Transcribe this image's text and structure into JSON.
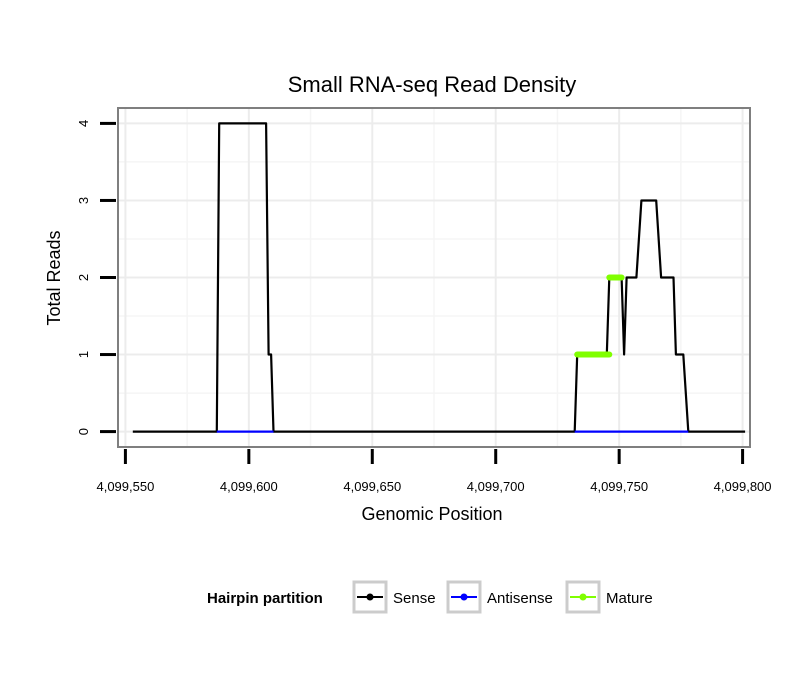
{
  "chart_data": {
    "type": "line",
    "title": "Small RNA-seq Read Density",
    "xlabel": "Genomic Position",
    "ylabel": "Total Reads",
    "xlim": [
      4099547,
      4099803
    ],
    "ylim": [
      -0.2,
      4.2
    ],
    "x_ticks": [
      4099550,
      4099600,
      4099650,
      4099700,
      4099750,
      4099800
    ],
    "x_tick_labels": [
      "4,099,550",
      "4,099,600",
      "4,099,650",
      "4,099,700",
      "4,099,750",
      "4,099,800"
    ],
    "y_ticks": [
      0,
      1,
      2,
      3,
      4
    ],
    "y_tick_labels": [
      "0",
      "1",
      "2",
      "3",
      "4"
    ],
    "grid": true,
    "legend": {
      "title": "Hairpin partition",
      "position": "bottom",
      "entries": [
        {
          "label": "Sense",
          "color": "#000000"
        },
        {
          "label": "Antisense",
          "color": "#0000ff"
        },
        {
          "label": "Mature",
          "color": "#80ff00"
        }
      ]
    },
    "series": [
      {
        "name": "Sense",
        "color": "#000000",
        "x": [
          4099553,
          4099587,
          4099588,
          4099607,
          4099608,
          4099609,
          4099610,
          4099732,
          4099733,
          4099745,
          4099746,
          4099751,
          4099752,
          4099753,
          4099754,
          4099757,
          4099759,
          4099765,
          4099767,
          4099772,
          4099773,
          4099776,
          4099778,
          4099801
        ],
        "y": [
          0,
          0,
          4,
          4,
          1,
          1,
          0,
          0,
          1,
          1,
          2,
          2,
          1,
          2,
          2,
          2,
          3,
          3,
          2,
          2,
          1,
          1,
          0,
          0
        ]
      },
      {
        "name": "Antisense",
        "color": "#0000ff",
        "segments": [
          {
            "x": [
              4099587,
              4099610
            ],
            "y": [
              0,
              0
            ]
          },
          {
            "x": [
              4099732,
              4099778
            ],
            "y": [
              0,
              0
            ]
          }
        ]
      },
      {
        "name": "Mature",
        "color": "#80ff00",
        "segments": [
          {
            "x": [
              4099733,
              4099746
            ],
            "y": [
              1,
              1
            ]
          },
          {
            "x": [
              4099746,
              4099751
            ],
            "y": [
              2,
              2
            ]
          }
        ]
      }
    ]
  }
}
